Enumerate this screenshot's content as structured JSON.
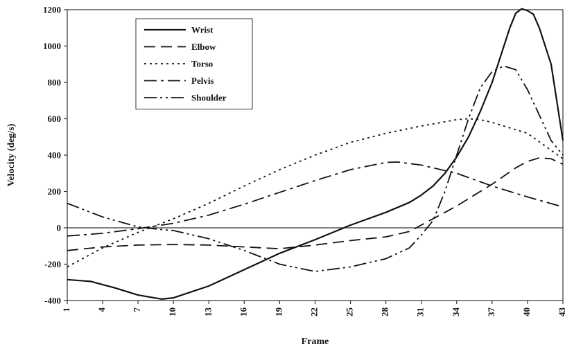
{
  "chart_data": {
    "type": "line",
    "xlabel": "Frame",
    "ylabel": "Velocity (deg/s)",
    "xlim": [
      1,
      43
    ],
    "ylim": [
      -400,
      1200
    ],
    "x_ticks": [
      1,
      4,
      7,
      10,
      13,
      16,
      19,
      22,
      25,
      28,
      31,
      34,
      37,
      40,
      43
    ],
    "y_ticks": [
      -400,
      -200,
      0,
      200,
      400,
      600,
      800,
      1000,
      1200
    ],
    "legend_position": "top-left",
    "grid": false,
    "series": [
      {
        "name": "Wrist",
        "dash": "solid",
        "points": [
          [
            1,
            -285
          ],
          [
            3,
            -295
          ],
          [
            5,
            -330
          ],
          [
            7,
            -370
          ],
          [
            9,
            -392
          ],
          [
            10,
            -385
          ],
          [
            13,
            -320
          ],
          [
            16,
            -230
          ],
          [
            19,
            -140
          ],
          [
            22,
            -65
          ],
          [
            25,
            15
          ],
          [
            28,
            85
          ],
          [
            30,
            140
          ],
          [
            31,
            180
          ],
          [
            32,
            230
          ],
          [
            33,
            300
          ],
          [
            34,
            390
          ],
          [
            35,
            500
          ],
          [
            36,
            640
          ],
          [
            37,
            800
          ],
          [
            38,
            1000
          ],
          [
            38.5,
            1100
          ],
          [
            39,
            1180
          ],
          [
            39.5,
            1205
          ],
          [
            40,
            1195
          ],
          [
            40.5,
            1175
          ],
          [
            41,
            1100
          ],
          [
            42,
            900
          ],
          [
            43,
            480
          ]
        ]
      },
      {
        "name": "Elbow",
        "dash": "dashed",
        "points": [
          [
            1,
            -125
          ],
          [
            4,
            -105
          ],
          [
            7,
            -95
          ],
          [
            10,
            -92
          ],
          [
            13,
            -95
          ],
          [
            16,
            -105
          ],
          [
            19,
            -115
          ],
          [
            22,
            -95
          ],
          [
            25,
            -70
          ],
          [
            28,
            -50
          ],
          [
            30,
            -20
          ],
          [
            31,
            15
          ],
          [
            32,
            50
          ],
          [
            34,
            120
          ],
          [
            37,
            240
          ],
          [
            39,
            330
          ],
          [
            40,
            365
          ],
          [
            41,
            385
          ],
          [
            42,
            380
          ],
          [
            43,
            350
          ]
        ]
      },
      {
        "name": "Torso",
        "dash": "dotted",
        "points": [
          [
            1,
            -215
          ],
          [
            4,
            -110
          ],
          [
            7,
            -25
          ],
          [
            10,
            50
          ],
          [
            13,
            135
          ],
          [
            16,
            230
          ],
          [
            19,
            320
          ],
          [
            22,
            400
          ],
          [
            25,
            470
          ],
          [
            28,
            520
          ],
          [
            31,
            560
          ],
          [
            34,
            595
          ],
          [
            35,
            600
          ],
          [
            36,
            595
          ],
          [
            37,
            580
          ],
          [
            40,
            520
          ],
          [
            43,
            380
          ]
        ]
      },
      {
        "name": "Pelvis",
        "dash": "dashdot",
        "points": [
          [
            1,
            -45
          ],
          [
            4,
            -30
          ],
          [
            7,
            -5
          ],
          [
            10,
            25
          ],
          [
            13,
            70
          ],
          [
            16,
            130
          ],
          [
            19,
            195
          ],
          [
            22,
            260
          ],
          [
            25,
            320
          ],
          [
            28,
            360
          ],
          [
            29,
            362
          ],
          [
            31,
            345
          ],
          [
            34,
            300
          ],
          [
            37,
            230
          ],
          [
            40,
            170
          ],
          [
            43,
            115
          ]
        ]
      },
      {
        "name": "Shoulder",
        "dash": "dashdotdot",
        "points": [
          [
            1,
            135
          ],
          [
            4,
            60
          ],
          [
            7,
            5
          ],
          [
            9,
            -10
          ],
          [
            10,
            -15
          ],
          [
            13,
            -60
          ],
          [
            16,
            -125
          ],
          [
            19,
            -200
          ],
          [
            22,
            -240
          ],
          [
            25,
            -215
          ],
          [
            28,
            -170
          ],
          [
            30,
            -110
          ],
          [
            31,
            -40
          ],
          [
            32,
            40
          ],
          [
            33,
            200
          ],
          [
            34,
            400
          ],
          [
            35,
            600
          ],
          [
            36,
            770
          ],
          [
            37,
            860
          ],
          [
            38,
            890
          ],
          [
            39,
            870
          ],
          [
            40,
            760
          ],
          [
            41,
            620
          ],
          [
            42,
            480
          ],
          [
            43,
            400
          ]
        ]
      }
    ]
  }
}
